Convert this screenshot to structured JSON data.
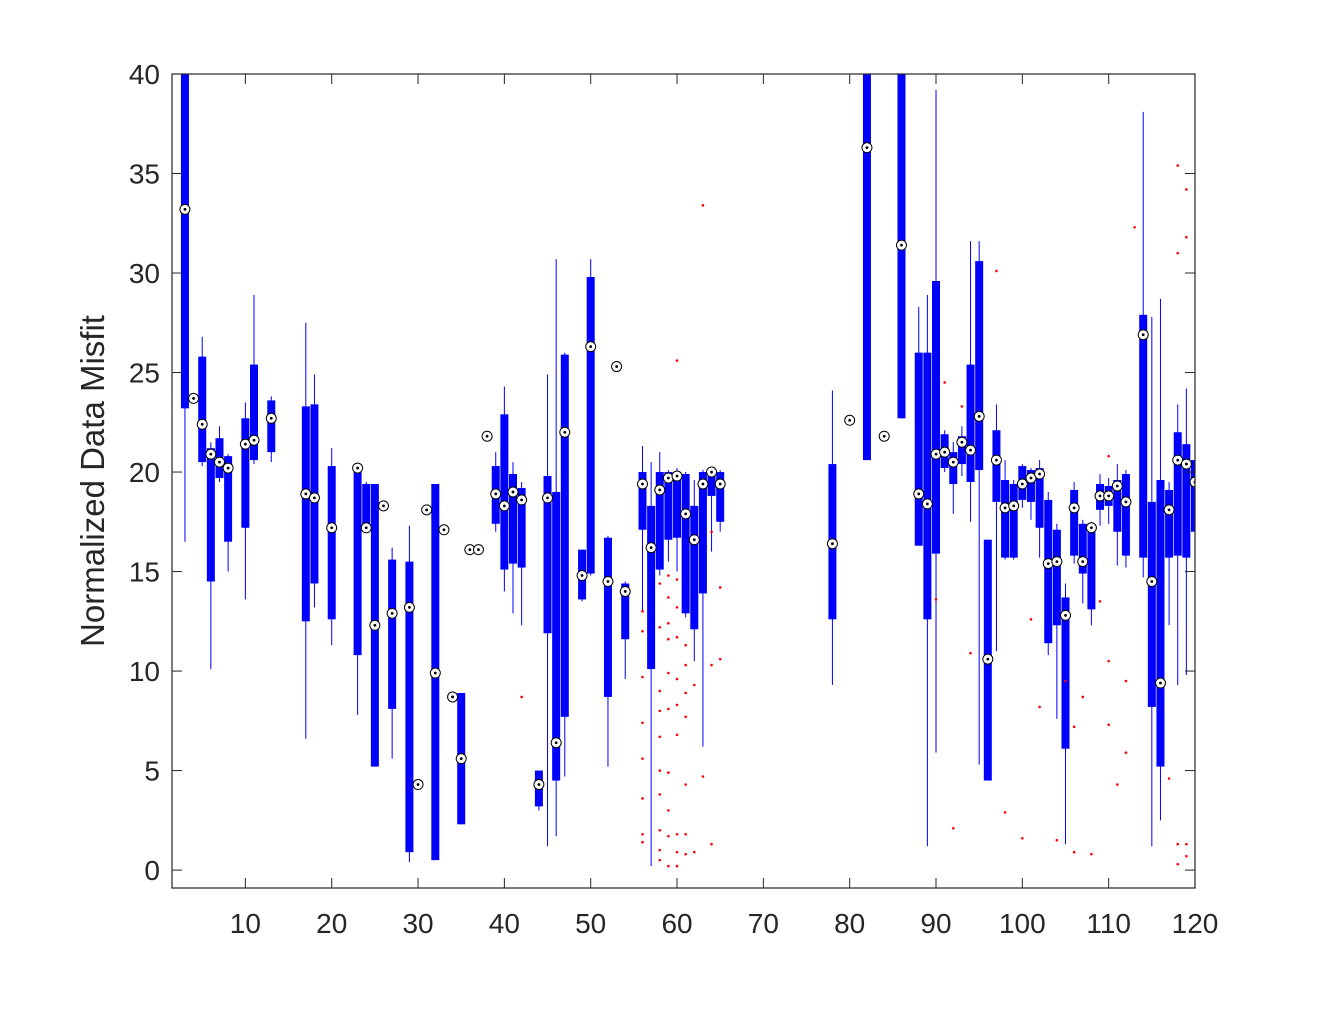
{
  "chart_data": {
    "type": "box",
    "y_label": "Normalized Data Misfit",
    "xlim": [
      1.5,
      120
    ],
    "ylim": [
      -0.9,
      40
    ],
    "xticks": [
      10,
      20,
      30,
      40,
      50,
      60,
      70,
      80,
      90,
      100,
      110,
      120
    ],
    "yticks": [
      0,
      5,
      10,
      15,
      20,
      25,
      30,
      35,
      40
    ],
    "box_color": "#0000ff",
    "outlier_color": "#ff0000",
    "boxes": {
      "x": [
        3,
        4,
        5,
        6,
        7,
        8,
        10,
        11,
        13,
        17,
        18,
        20,
        23,
        24,
        25,
        26,
        27,
        29,
        30,
        31,
        32,
        33,
        34,
        35,
        36,
        37,
        38,
        39,
        40,
        41,
        42,
        44,
        45,
        46,
        47,
        49,
        50,
        52,
        53,
        54,
        56,
        57,
        58,
        59,
        60,
        61,
        62,
        63,
        64,
        65,
        78,
        80,
        82,
        84,
        86,
        88,
        89,
        90,
        91,
        92,
        93,
        94,
        95,
        96,
        97,
        98,
        99,
        100,
        101,
        102,
        103,
        104,
        105,
        106,
        107,
        108,
        109,
        110,
        111,
        112,
        114,
        115,
        116,
        117,
        118,
        119,
        120
      ],
      "whisker_low": [
        16.5,
        23.7,
        20.3,
        10.1,
        19.5,
        15,
        13.6,
        20.4,
        20.5,
        6.6,
        13.2,
        11.3,
        7.8,
        17,
        5.2,
        18.3,
        5.6,
        0.4,
        4.3,
        18.1,
        0.5,
        17.1,
        8.5,
        2.3,
        16.1,
        16.1,
        21.8,
        17,
        14,
        12.9,
        12.3,
        3,
        1.2,
        1.7,
        4.7,
        13.5,
        14.8,
        5.2,
        25.3,
        9.6,
        13,
        0.2,
        14.8,
        15.5,
        15,
        12.7,
        10.5,
        6.2,
        16,
        17,
        9.3,
        22.6,
        20.6,
        21.8,
        22.7,
        16.3,
        1.2,
        5.9,
        20,
        17.9,
        19.8,
        17.5,
        5.3,
        4.5,
        11,
        15.6,
        15.6,
        18.2,
        17.6,
        15.7,
        10.8,
        7.6,
        1.3,
        15.4,
        13.4,
        12.3,
        17.3,
        17.4,
        15.3,
        15.2,
        14.7,
        1.2,
        2.5,
        12.3,
        9.3,
        9.8,
        12.6
      ],
      "q1": [
        23.2,
        23.7,
        20.5,
        14.5,
        19.7,
        16.5,
        17.2,
        20.6,
        21,
        12.5,
        14.4,
        12.6,
        10.8,
        17.2,
        5.2,
        18.3,
        8.1,
        0.9,
        4.3,
        18.1,
        0.5,
        17.1,
        8.5,
        2.3,
        16.1,
        16.1,
        21.8,
        17.4,
        15.1,
        15.4,
        15.2,
        3.2,
        11.9,
        4.5,
        7.7,
        13.6,
        14.9,
        8.7,
        25.3,
        11.6,
        17.1,
        10.1,
        15.1,
        16.6,
        16.7,
        12.9,
        12.1,
        13.9,
        18.8,
        17.5,
        12.6,
        22.6,
        20.6,
        21.8,
        22.7,
        16.3,
        12.6,
        15.9,
        20.2,
        19.4,
        20.4,
        19.5,
        20.1,
        4.5,
        18.5,
        15.7,
        15.7,
        18.6,
        18.5,
        17.2,
        11.4,
        12.3,
        6.1,
        15.8,
        14.9,
        13.1,
        18.1,
        18.3,
        17,
        15.8,
        15.7,
        8.2,
        5.2,
        15.7,
        15.8,
        15.7,
        17
      ],
      "median": [
        33.2,
        23.7,
        22.4,
        20.9,
        20.5,
        20.2,
        21.4,
        21.6,
        22.7,
        18.9,
        18.7,
        17.2,
        20.2,
        17.2,
        12.3,
        18.3,
        12.9,
        13.2,
        4.3,
        18.1,
        9.9,
        17.1,
        8.7,
        5.6,
        16.1,
        16.1,
        21.8,
        18.9,
        18.3,
        19,
        18.6,
        4.3,
        18.7,
        6.4,
        22,
        14.8,
        26.3,
        14.5,
        25.3,
        14,
        19.4,
        16.2,
        19.1,
        19.7,
        19.8,
        17.9,
        16.6,
        19.4,
        20,
        19.4,
        16.4,
        22.6,
        36.3,
        21.8,
        31.4,
        18.9,
        18.4,
        20.9,
        21,
        20.5,
        21.5,
        21.1,
        22.8,
        10.6,
        20.6,
        18.2,
        18.3,
        19.4,
        19.7,
        19.9,
        15.4,
        15.5,
        12.8,
        18.2,
        15.5,
        17.2,
        18.8,
        18.8,
        19.3,
        18.5,
        26.9,
        14.5,
        9.4,
        18.1,
        20.6,
        20.4,
        19.5
      ],
      "q3": [
        41,
        23.7,
        25.8,
        21.2,
        21.7,
        20.8,
        22.7,
        25.4,
        23.6,
        23.3,
        23.4,
        20.3,
        20.2,
        19.4,
        19.4,
        18.3,
        15.6,
        15.5,
        4.3,
        18.1,
        19.4,
        17.1,
        8.9,
        8.9,
        16.1,
        16.1,
        21.8,
        20.3,
        22.9,
        19.9,
        19.2,
        5,
        19.8,
        19,
        25.9,
        16.1,
        29.8,
        16.7,
        25.3,
        14.4,
        20,
        18.3,
        20,
        20,
        20,
        19.9,
        18.3,
        20,
        20.1,
        20,
        20.4,
        22.6,
        41,
        21.8,
        41,
        26,
        26,
        29.6,
        21.9,
        21,
        21.8,
        25.4,
        30.6,
        16.6,
        22.1,
        19.6,
        19.4,
        20.3,
        20.1,
        20.2,
        18.6,
        17.1,
        13.7,
        19.1,
        17.4,
        17.4,
        19.4,
        19.3,
        19.6,
        19.9,
        27.9,
        18.5,
        19.6,
        19.1,
        22,
        21.4,
        20.6
      ],
      "whisker_high": [
        41,
        23.7,
        26.8,
        21.5,
        22.3,
        20.9,
        23.5,
        28.9,
        23.8,
        27.5,
        24.9,
        21.2,
        20.3,
        19.5,
        19.4,
        18.3,
        16.2,
        17.3,
        4.3,
        18.1,
        19.4,
        17.1,
        8.9,
        8.9,
        16.1,
        16.1,
        21.8,
        21,
        24.3,
        20.5,
        19.5,
        5,
        24.9,
        30.7,
        26,
        16.1,
        30.7,
        16.8,
        25.3,
        14.5,
        21.3,
        20.5,
        21,
        20.1,
        20.2,
        20,
        19.6,
        20.1,
        20.1,
        20.1,
        24.1,
        22.6,
        41,
        21.8,
        41,
        28.3,
        28.9,
        39.2,
        22.1,
        21.5,
        22.3,
        31.6,
        31.6,
        16.6,
        23.4,
        20.6,
        19.6,
        20.4,
        20.2,
        20.6,
        19,
        17.4,
        14.4,
        19.5,
        17.6,
        17.5,
        19.9,
        19.7,
        20.4,
        20.1,
        38.1,
        27.8,
        28.7,
        19.5,
        23.4,
        24.2,
        25.5
      ]
    },
    "outliers": {
      "x": [
        42,
        56,
        56,
        56,
        56,
        56,
        56,
        56,
        56,
        58,
        58,
        58,
        58,
        58,
        58,
        58,
        58,
        58,
        58,
        59,
        59,
        59,
        59,
        59,
        59,
        59,
        59,
        59,
        59,
        60,
        60,
        60,
        60,
        60,
        60,
        60,
        60,
        60,
        60,
        61,
        61,
        61,
        61,
        61,
        61,
        61,
        62,
        62,
        63,
        63,
        64,
        64,
        64,
        65,
        65,
        90,
        91,
        92,
        93,
        94,
        97,
        98,
        100,
        101,
        102,
        104,
        105,
        106,
        106,
        107,
        108,
        109,
        110,
        110,
        110,
        111,
        112,
        112,
        113,
        117,
        118,
        118,
        118,
        118,
        119,
        119,
        119,
        119
      ],
      "y": [
        8.7,
        13,
        12,
        9.7,
        7.4,
        5.6,
        3.6,
        1.8,
        1.4,
        14.4,
        12.2,
        9,
        8,
        6.7,
        5,
        3.8,
        2,
        1,
        0.5,
        14.8,
        13.7,
        12.4,
        11.6,
        9.9,
        8.1,
        4.9,
        3,
        1.7,
        0.2,
        25.6,
        14.6,
        13.2,
        11.7,
        9.6,
        8.3,
        6.8,
        1.8,
        0.9,
        0.2,
        11.3,
        10.3,
        8.9,
        7.7,
        4.3,
        1.8,
        0.8,
        9.3,
        0.9,
        33.4,
        4.7,
        17,
        10.3,
        1.3,
        14.2,
        10.6,
        13.6,
        24.5,
        2.1,
        23.3,
        10.9,
        30.1,
        2.9,
        1.6,
        12.6,
        8.2,
        1.5,
        9.5,
        7.2,
        0.9,
        8.7,
        0.8,
        13.5,
        20.8,
        7.3,
        10.5,
        4.3,
        9.5,
        5.9,
        32.3,
        4.6,
        35.4,
        31,
        1.3,
        0.3,
        34.2,
        31.8,
        1.3,
        0.7
      ]
    }
  }
}
